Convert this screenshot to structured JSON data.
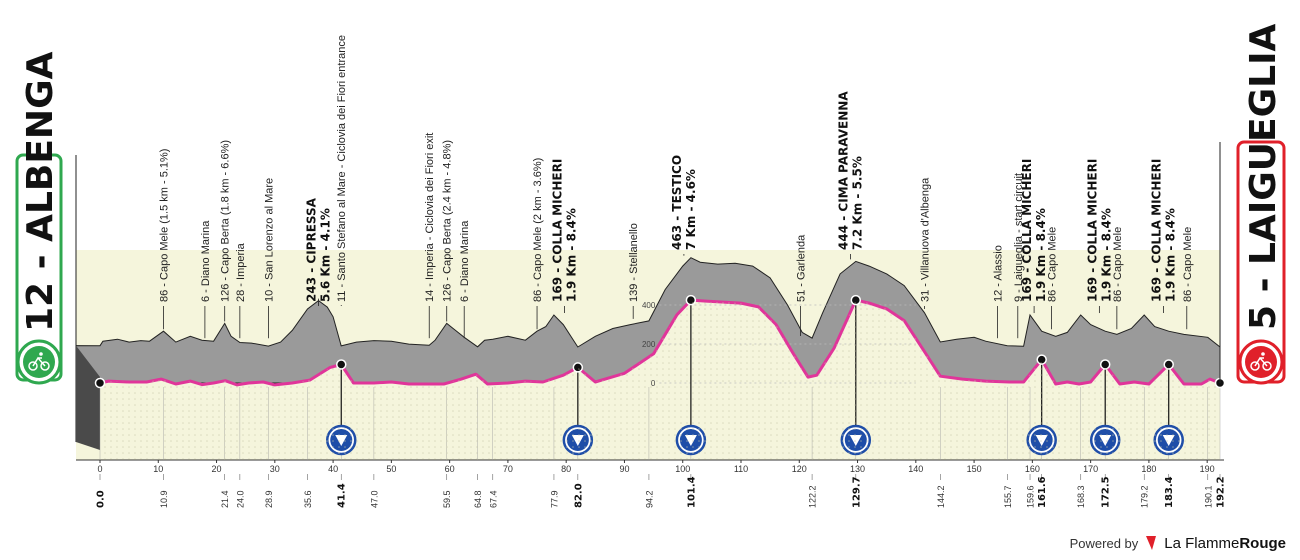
{
  "chart_data": {
    "type": "area",
    "title": "",
    "xlabel": "",
    "ylabel": "",
    "xlim": [
      0,
      192.2
    ],
    "ylim": [
      0,
      600
    ],
    "y_ticks": [
      0,
      200,
      400
    ],
    "x_ticks": [
      0,
      10,
      20,
      30,
      40,
      50,
      60,
      70,
      80,
      90,
      100,
      110,
      120,
      130,
      140,
      150,
      160,
      170,
      180,
      190
    ],
    "start": {
      "label": "12 - ALBENGA",
      "color": "#2fa84f"
    },
    "finish": {
      "label": "5 - LAIGUEGLIA",
      "color": "#e0202a"
    },
    "profile": [
      [
        0,
        12
      ],
      [
        0.5,
        35
      ],
      [
        3,
        45
      ],
      [
        5,
        30
      ],
      [
        7,
        38
      ],
      [
        8.5,
        35
      ],
      [
        10.9,
        86
      ],
      [
        13,
        30
      ],
      [
        15.5,
        60
      ],
      [
        17.5,
        40
      ],
      [
        19.5,
        35
      ],
      [
        21.4,
        126
      ],
      [
        22.5,
        60
      ],
      [
        24.0,
        28
      ],
      [
        26,
        25
      ],
      [
        28.9,
        10
      ],
      [
        31,
        30
      ],
      [
        33,
        90
      ],
      [
        35.6,
        200
      ],
      [
        37.5,
        243
      ],
      [
        39,
        210
      ],
      [
        40,
        160
      ],
      [
        41.4,
        11
      ],
      [
        44,
        30
      ],
      [
        47.0,
        38
      ],
      [
        50,
        35
      ],
      [
        53,
        20
      ],
      [
        56.5,
        14
      ],
      [
        57.5,
        40
      ],
      [
        59.5,
        126
      ],
      [
        61,
        90
      ],
      [
        62.5,
        55
      ],
      [
        64.8,
        6
      ],
      [
        66,
        40
      ],
      [
        67.4,
        45
      ],
      [
        70,
        60
      ],
      [
        73,
        40
      ],
      [
        75,
        86
      ],
      [
        76.5,
        110
      ],
      [
        77.9,
        169
      ],
      [
        79.5,
        120
      ],
      [
        82.0,
        5
      ],
      [
        85,
        60
      ],
      [
        88,
        100
      ],
      [
        91,
        120
      ],
      [
        94.2,
        139
      ],
      [
        97,
        300
      ],
      [
        100,
        420
      ],
      [
        101.4,
        463
      ],
      [
        103,
        440
      ],
      [
        106,
        430
      ],
      [
        109,
        435
      ],
      [
        112,
        420
      ],
      [
        115,
        360
      ],
      [
        118,
        220
      ],
      [
        120.5,
        80
      ],
      [
        122.2,
        51
      ],
      [
        124,
        180
      ],
      [
        127,
        380
      ],
      [
        129.7,
        444
      ],
      [
        132,
        420
      ],
      [
        135,
        380
      ],
      [
        138,
        320
      ],
      [
        141.5,
        180
      ],
      [
        144.2,
        31
      ],
      [
        147,
        45
      ],
      [
        150,
        55
      ],
      [
        152,
        35
      ],
      [
        155.7,
        12
      ],
      [
        158.5,
        9
      ],
      [
        159.6,
        169
      ],
      [
        161.6,
        86
      ],
      [
        164,
        60
      ],
      [
        166,
        80
      ],
      [
        168.3,
        169
      ],
      [
        170,
        120
      ],
      [
        172.5,
        86
      ],
      [
        174.5,
        70
      ],
      [
        177,
        100
      ],
      [
        179.2,
        169
      ],
      [
        181,
        110
      ],
      [
        183.4,
        86
      ],
      [
        186,
        70
      ],
      [
        190.1,
        55
      ],
      [
        192.2,
        5
      ]
    ],
    "route_line": [
      [
        0,
        0
      ],
      [
        1.5,
        10
      ],
      [
        5,
        5
      ],
      [
        8,
        5
      ],
      [
        10.5,
        20
      ],
      [
        13,
        -5
      ],
      [
        15.5,
        10
      ],
      [
        17.5,
        -8
      ],
      [
        19.5,
        0
      ],
      [
        21.5,
        12
      ],
      [
        23.5,
        -10
      ],
      [
        25.5,
        0
      ],
      [
        28,
        5
      ],
      [
        30,
        -10
      ],
      [
        33,
        0
      ],
      [
        36,
        15
      ],
      [
        39.5,
        80
      ],
      [
        41.4,
        95
      ],
      [
        43.5,
        0
      ],
      [
        47,
        0
      ],
      [
        50,
        5
      ],
      [
        53,
        -5
      ],
      [
        56,
        -5
      ],
      [
        59,
        -5
      ],
      [
        62,
        20
      ],
      [
        64.5,
        45
      ],
      [
        66.5,
        -5
      ],
      [
        70,
        0
      ],
      [
        73,
        10
      ],
      [
        76,
        5
      ],
      [
        79.5,
        40
      ],
      [
        82,
        80
      ],
      [
        85,
        5
      ],
      [
        90,
        50
      ],
      [
        95,
        150
      ],
      [
        99,
        350
      ],
      [
        101.4,
        425
      ],
      [
        104,
        420
      ],
      [
        107,
        415
      ],
      [
        110,
        410
      ],
      [
        113,
        390
      ],
      [
        116,
        300
      ],
      [
        119,
        150
      ],
      [
        121.5,
        30
      ],
      [
        123,
        40
      ],
      [
        126,
        180
      ],
      [
        129.7,
        425
      ],
      [
        132,
        410
      ],
      [
        135,
        380
      ],
      [
        138,
        320
      ],
      [
        141.5,
        160
      ],
      [
        144.2,
        35
      ],
      [
        148,
        20
      ],
      [
        152,
        10
      ],
      [
        156,
        5
      ],
      [
        158.5,
        5
      ],
      [
        161.6,
        120
      ],
      [
        164,
        -5
      ],
      [
        166,
        5
      ],
      [
        168,
        -5
      ],
      [
        170,
        5
      ],
      [
        172.5,
        95
      ],
      [
        175,
        -5
      ],
      [
        177.5,
        5
      ],
      [
        180,
        -5
      ],
      [
        183.4,
        95
      ],
      [
        186,
        -5
      ],
      [
        189,
        -5
      ],
      [
        190.5,
        20
      ],
      [
        192.2,
        0
      ]
    ],
    "top_labels": [
      {
        "km": 10.9,
        "text": "86 - Capo Mele (1.5 km - 5.1%)",
        "y": 86
      },
      {
        "km": 18.0,
        "text": "6 - Diano Marina",
        "y": 40
      },
      {
        "km": 21.4,
        "text": "126 - Capo Berta (1.8 km - 6.6%)",
        "y": 126
      },
      {
        "km": 24.0,
        "text": "28 - Imperia",
        "y": 40
      },
      {
        "km": 28.9,
        "text": "10 - San Lorenzo al Mare",
        "y": 40
      },
      {
        "km": 41.4,
        "text": "11 - Santo Stefano al Mare - Ciclovia dei Fiori entrance",
        "y": 210
      },
      {
        "km": 56.5,
        "text": "14 - Imperia - Ciclovia dei Fiori exit",
        "y": 40
      },
      {
        "km": 59.5,
        "text": "126 - Capo Berta (2.4 km - 4.8%)",
        "y": 126
      },
      {
        "km": 62.5,
        "text": "6 - Diano Marina",
        "y": 40
      },
      {
        "km": 75.0,
        "text": "86 - Capo Mele (2 km - 3.6%)",
        "y": 86
      },
      {
        "km": 91.5,
        "text": "139 - Stellanello",
        "y": 139
      },
      {
        "km": 120.2,
        "text": "51 - Garlenda",
        "y": 51
      },
      {
        "km": 141.5,
        "text": "31 - Villanuova d'Albenga",
        "y": 190
      },
      {
        "km": 154.0,
        "text": "12 - Alassio",
        "y": 40
      },
      {
        "km": 157.5,
        "text": "9 - Laigueglia - start circuit",
        "y": 40
      },
      {
        "km": 163.3,
        "text": "86 - Capo Mele",
        "y": 86
      },
      {
        "km": 174.5,
        "text": "86 - Capo Mele",
        "y": 86
      },
      {
        "km": 186.5,
        "text": "86 - Capo Mele",
        "y": 86
      }
    ],
    "kom_labels": [
      {
        "km": 37.5,
        "line1": "243 - CIPRESSA",
        "line2": "5.6 Km - 4.1%",
        "y": 243
      },
      {
        "km": 79.7,
        "line1": "169 - COLLA MICHERI",
        "line2": "1.9 Km - 8.4%",
        "y": 169
      },
      {
        "km": 100.2,
        "line1": "463 - TESTICO",
        "line2": "7 Km - 4.6%",
        "y": 463
      },
      {
        "km": 128.8,
        "line1": "444 - CIMA PARAVENNA",
        "line2": "7.2 Km - 5.5%",
        "y": 444
      },
      {
        "km": 160.3,
        "line1": "169 - COLLA MICHERI",
        "line2": "1.9 Km - 8.4%",
        "y": 169
      },
      {
        "km": 171.5,
        "line1": "169 - COLLA MICHERI",
        "line2": "1.9 Km - 8.4%",
        "y": 169
      },
      {
        "km": 182.5,
        "line1": "169 - COLLA MICHERI",
        "line2": "1.9 Km - 8.4%",
        "y": 169
      }
    ],
    "km_marks": [
      {
        "km": 0.0,
        "text": "0.0",
        "bold": true
      },
      {
        "km": 10.9,
        "text": "10.9",
        "bold": false
      },
      {
        "km": 21.4,
        "text": "21.4",
        "bold": false
      },
      {
        "km": 24.0,
        "text": "24.0",
        "bold": false
      },
      {
        "km": 28.9,
        "text": "28.9",
        "bold": false
      },
      {
        "km": 35.6,
        "text": "35.6",
        "bold": false
      },
      {
        "km": 41.4,
        "text": "41.4",
        "bold": true
      },
      {
        "km": 47.0,
        "text": "47.0",
        "bold": false
      },
      {
        "km": 59.5,
        "text": "59.5",
        "bold": false
      },
      {
        "km": 64.8,
        "text": "64.8",
        "bold": false
      },
      {
        "km": 67.4,
        "text": "67.4",
        "bold": false
      },
      {
        "km": 77.9,
        "text": "77.9",
        "bold": false
      },
      {
        "km": 82.0,
        "text": "82.0",
        "bold": true
      },
      {
        "km": 94.2,
        "text": "94.2",
        "bold": false
      },
      {
        "km": 101.4,
        "text": "101.4",
        "bold": true
      },
      {
        "km": 122.2,
        "text": "122.2",
        "bold": false
      },
      {
        "km": 129.7,
        "text": "129.7",
        "bold": true
      },
      {
        "km": 144.2,
        "text": "144.2",
        "bold": false
      },
      {
        "km": 155.7,
        "text": "155.7",
        "bold": false
      },
      {
        "km": 159.6,
        "text": "159.6",
        "bold": false
      },
      {
        "km": 161.6,
        "text": "161.6",
        "bold": true
      },
      {
        "km": 168.3,
        "text": "168.3",
        "bold": false
      },
      {
        "km": 172.5,
        "text": "172.5",
        "bold": true
      },
      {
        "km": 179.2,
        "text": "179.2",
        "bold": false
      },
      {
        "km": 183.4,
        "text": "183.4",
        "bold": true
      },
      {
        "km": 190.1,
        "text": "190.1",
        "bold": false
      },
      {
        "km": 192.2,
        "text": "192.2",
        "bold": true
      }
    ],
    "kom_markers": [
      41.4,
      82.0,
      101.4,
      129.7,
      161.6,
      172.5,
      183.4
    ],
    "colors": {
      "terrain": "#9a9a9a",
      "terrain_dark": "#4a4a4a",
      "base_fill": "#f5f5dc",
      "route": "#e0359a",
      "kom_marker": "#1f4ea8"
    }
  },
  "footer": {
    "powered_by": "Powered by",
    "brand_a": "La Flamme",
    "brand_b": "Rouge"
  }
}
